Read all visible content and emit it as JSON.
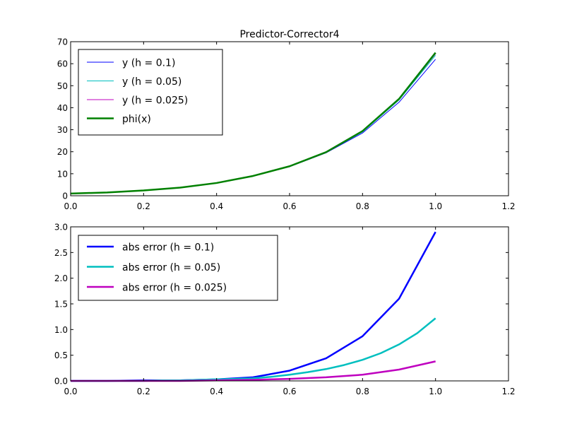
{
  "chart_data": [
    {
      "type": "line",
      "title": "Predictor-Corrector4",
      "xlabel": "",
      "ylabel": "",
      "xlim": [
        0.0,
        1.2
      ],
      "ylim": [
        0,
        70
      ],
      "x_ticks": [
        "0.0",
        "0.2",
        "0.4",
        "0.6",
        "0.8",
        "1.0",
        "1.2"
      ],
      "y_ticks": [
        "0",
        "10",
        "20",
        "30",
        "40",
        "50",
        "60",
        "70"
      ],
      "grid": false,
      "legend_position": "upper-left",
      "series": [
        {
          "name": "y (h = 0.1)",
          "color": "#0000ff",
          "line_width": "thin",
          "x": [
            0.0,
            0.1,
            0.2,
            0.3,
            0.4,
            0.5,
            0.6,
            0.7,
            0.8,
            0.9,
            1.0
          ],
          "y": [
            1.0,
            1.5,
            2.4,
            3.7,
            5.8,
            9.0,
            13.2,
            19.5,
            28.5,
            42.5,
            62.0
          ]
        },
        {
          "name": "y (h = 0.05)",
          "color": "#00bfbf",
          "line_width": "thin",
          "x": [
            0.0,
            0.1,
            0.2,
            0.3,
            0.4,
            0.5,
            0.6,
            0.7,
            0.8,
            0.9,
            1.0
          ],
          "y": [
            1.0,
            1.5,
            2.4,
            3.7,
            5.8,
            9.0,
            13.3,
            19.7,
            29.0,
            43.5,
            63.8
          ]
        },
        {
          "name": "y (h = 0.025)",
          "color": "#bf00bf",
          "line_width": "thin",
          "x": [
            0.0,
            0.1,
            0.2,
            0.3,
            0.4,
            0.5,
            0.6,
            0.7,
            0.8,
            0.9,
            1.0
          ],
          "y": [
            1.0,
            1.5,
            2.4,
            3.7,
            5.8,
            9.0,
            13.3,
            19.7,
            29.2,
            43.8,
            64.5
          ]
        },
        {
          "name": "phi(x)",
          "color": "#008000",
          "line_width": "thick",
          "x": [
            0.0,
            0.1,
            0.2,
            0.3,
            0.4,
            0.5,
            0.6,
            0.7,
            0.8,
            0.9,
            1.0
          ],
          "y": [
            1.0,
            1.5,
            2.4,
            3.7,
            5.8,
            9.0,
            13.4,
            19.8,
            29.4,
            44.0,
            65.0
          ]
        }
      ]
    },
    {
      "type": "line",
      "title": "",
      "xlabel": "",
      "ylabel": "",
      "xlim": [
        0.0,
        1.2
      ],
      "ylim": [
        0.0,
        3.0
      ],
      "x_ticks": [
        "0.0",
        "0.2",
        "0.4",
        "0.6",
        "0.8",
        "1.0",
        "1.2"
      ],
      "y_ticks": [
        "0.0",
        "0.5",
        "1.0",
        "1.5",
        "2.0",
        "2.5",
        "3.0"
      ],
      "grid": false,
      "legend_position": "upper-left",
      "series": [
        {
          "name": "abs error (h = 0.1)",
          "color": "#0000ff",
          "line_width": "thick",
          "x": [
            0.0,
            0.1,
            0.2,
            0.3,
            0.4,
            0.5,
            0.6,
            0.7,
            0.8,
            0.9,
            1.0
          ],
          "y": [
            0.0,
            0.0,
            0.01,
            0.01,
            0.03,
            0.07,
            0.2,
            0.44,
            0.87,
            1.6,
            2.9
          ]
        },
        {
          "name": "abs error (h = 0.05)",
          "color": "#00bfbf",
          "line_width": "thick",
          "x": [
            0.0,
            0.05,
            0.1,
            0.15,
            0.2,
            0.25,
            0.3,
            0.35,
            0.4,
            0.45,
            0.5,
            0.55,
            0.6,
            0.65,
            0.7,
            0.75,
            0.8,
            0.85,
            0.9,
            0.95,
            1.0
          ],
          "y": [
            0.0,
            0.0,
            0.0,
            0.0,
            0.0,
            0.01,
            0.01,
            0.02,
            0.03,
            0.04,
            0.05,
            0.08,
            0.12,
            0.17,
            0.23,
            0.31,
            0.41,
            0.54,
            0.71,
            0.93,
            1.22
          ]
        },
        {
          "name": "abs error (h = 0.025)",
          "color": "#bf00bf",
          "line_width": "thick",
          "x": [
            0.0,
            0.1,
            0.2,
            0.3,
            0.4,
            0.5,
            0.6,
            0.7,
            0.8,
            0.9,
            1.0
          ],
          "y": [
            0.0,
            0.0,
            0.0,
            0.0,
            0.01,
            0.02,
            0.04,
            0.07,
            0.12,
            0.22,
            0.38
          ]
        }
      ]
    }
  ]
}
